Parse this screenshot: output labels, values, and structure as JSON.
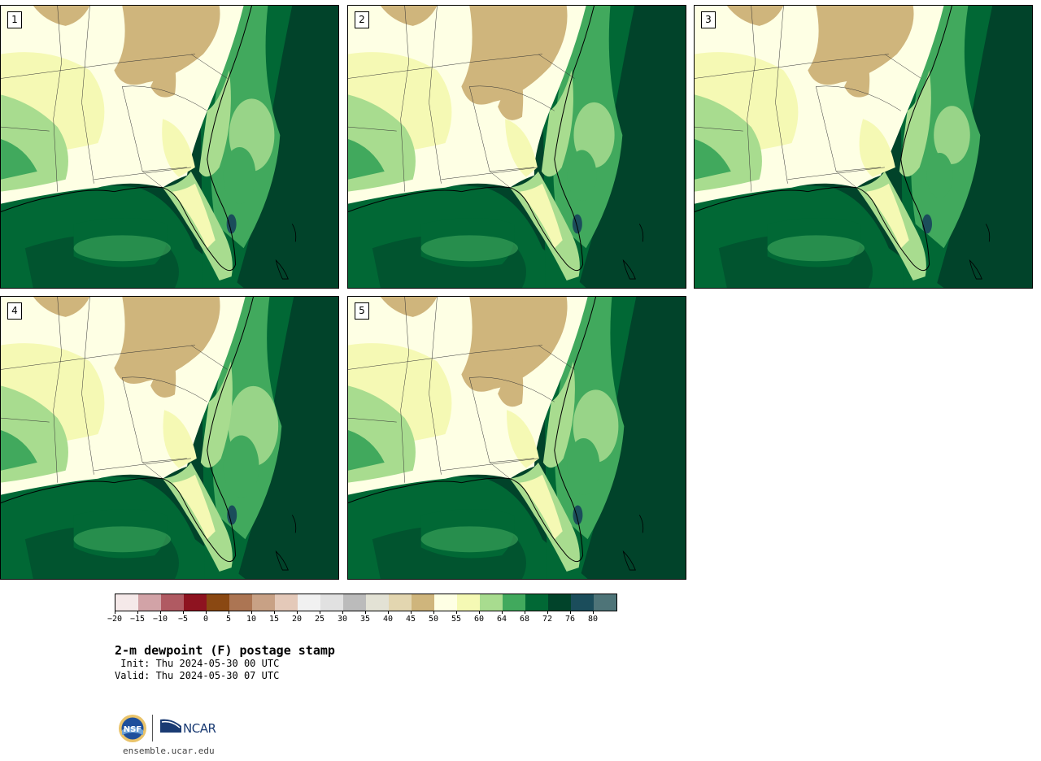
{
  "panels": [
    {
      "label": "1"
    },
    {
      "label": "2"
    },
    {
      "label": "3"
    },
    {
      "label": "4"
    },
    {
      "label": "5"
    }
  ],
  "colorbar": {
    "colors": [
      "#f5e9e9",
      "#d2a3a7",
      "#b05a62",
      "#8e1320",
      "#8a4812",
      "#ac7553",
      "#c8a185",
      "#e4c9b9",
      "#f1f1f1",
      "#e1e1e1",
      "#bbbbbb",
      "#e3e2d5",
      "#e3d6b0",
      "#cfb57c",
      "#feffe4",
      "#f5f9b4",
      "#a8dc8f",
      "#41a95d",
      "#016835",
      "#01432a",
      "#1b4d5b",
      "#4e7478"
    ],
    "tick_labels": [
      "−20",
      "−15",
      "−10",
      "−5",
      "0",
      "5",
      "10",
      "15",
      "20",
      "25",
      "30",
      "35",
      "40",
      "45",
      "50",
      "55",
      "60",
      "64",
      "68",
      "72",
      "76",
      "80"
    ]
  },
  "title": "2-m dewpoint (F) postage stamp",
  "init": " Init: Thu 2024-05-30 00 UTC",
  "valid": "Valid: Thu 2024-05-30 07 UTC",
  "footer": {
    "site": "ensemble.ucar.edu",
    "nsf_logo_text": "NSF",
    "ncar_logo_text": "NCAR"
  }
}
